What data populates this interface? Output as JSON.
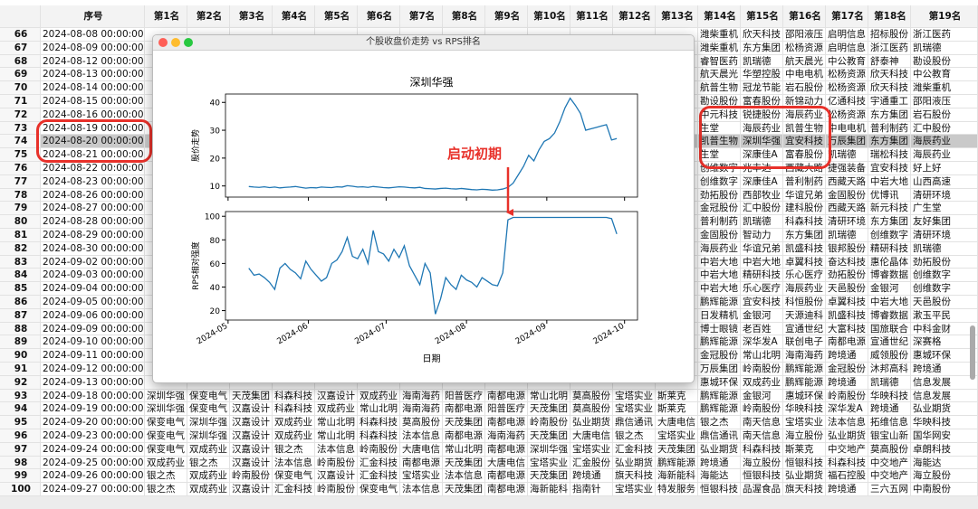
{
  "table": {
    "columns": [
      "序号",
      "第1名",
      "第2名",
      "第3名",
      "第4名",
      "第5名",
      "第6名",
      "第7名",
      "第8名",
      "第9名",
      "第10名",
      "第11名",
      "第12名",
      "第13名",
      "第14名",
      "第15名",
      "第16名",
      "第17名",
      "第18名",
      "第19名"
    ],
    "rows": [
      {
        "index": 66,
        "date": "2024-08-08 00:00:00",
        "cells": [
          null,
          null,
          null,
          null,
          null,
          null,
          null,
          null,
          null,
          null,
          null,
          null,
          null,
          "潍柴重机",
          "欣天科技",
          "邵阳液压",
          "启明信息",
          "招标股份",
          "浙江医药"
        ]
      },
      {
        "index": 67,
        "date": "2024-08-09 00:00:00",
        "cells": [
          null,
          null,
          null,
          null,
          null,
          null,
          null,
          null,
          null,
          null,
          null,
          null,
          null,
          "潍柴重机",
          "东方集团",
          "松杨资源",
          "启明信息",
          "浙江医药",
          "凯瑞德"
        ]
      },
      {
        "index": 68,
        "date": "2024-08-12 00:00:00",
        "cells": [
          null,
          null,
          null,
          null,
          null,
          null,
          null,
          null,
          null,
          null,
          null,
          null,
          null,
          "睿智医药",
          "凯瑞德",
          "航天晨光",
          "中公教育",
          "舒泰神",
          "勘设股份"
        ]
      },
      {
        "index": 69,
        "date": "2024-08-13 00:00:00",
        "cells": [
          null,
          null,
          null,
          null,
          null,
          null,
          null,
          null,
          null,
          null,
          null,
          null,
          null,
          "航天晨光",
          "华塑控股",
          "中电电机",
          "松杨资源",
          "欣天科技",
          "中公教育"
        ]
      },
      {
        "index": 70,
        "date": "2024-08-14 00:00:00",
        "cells": [
          null,
          null,
          null,
          null,
          null,
          null,
          null,
          null,
          null,
          null,
          null,
          null,
          null,
          "航普生物",
          "冠龙节能",
          "岩石股份",
          "松杨资源",
          "欣天科技",
          "潍柴重机"
        ]
      },
      {
        "index": 71,
        "date": "2024-08-15 00:00:00",
        "cells": [
          null,
          null,
          null,
          null,
          null,
          null,
          null,
          null,
          null,
          null,
          null,
          null,
          null,
          "勘设股份",
          "富春股份",
          "新锦动力",
          "亿通科技",
          "宇通重工",
          "邵阳液压"
        ]
      },
      {
        "index": 72,
        "date": "2024-08-16 00:00:00",
        "cells": [
          null,
          null,
          null,
          null,
          null,
          null,
          null,
          null,
          null,
          null,
          null,
          null,
          null,
          "中元科技",
          "锐捷股份",
          "海辰药业",
          "松杨资源",
          "东方集团",
          "岩石股份"
        ]
      },
      {
        "index": 73,
        "date": "2024-08-19 00:00:00",
        "cells": [
          null,
          null,
          null,
          null,
          null,
          null,
          null,
          null,
          null,
          null,
          null,
          null,
          null,
          "生堂",
          "海辰药业",
          "凯普生物",
          "中电电机",
          "普利制药",
          "汇中股份"
        ]
      },
      {
        "index": 74,
        "date": "2024-08-20 00:00:00",
        "cells": [
          null,
          null,
          null,
          null,
          null,
          null,
          null,
          null,
          null,
          null,
          null,
          null,
          null,
          "凯普生物",
          "深圳华强",
          "宜安科技",
          "万辰集团",
          "东方集团",
          "海辰药业"
        ]
      },
      {
        "index": 75,
        "date": "2024-08-21 00:00:00",
        "cells": [
          null,
          null,
          null,
          null,
          null,
          null,
          null,
          null,
          null,
          null,
          null,
          null,
          null,
          "生堂",
          "深康佳A",
          "富春股份",
          "凯瑞德",
          "瑞松科技",
          "海辰药业"
        ]
      },
      {
        "index": 76,
        "date": "2024-08-22 00:00:00",
        "cells": [
          null,
          null,
          null,
          null,
          null,
          null,
          null,
          null,
          null,
          null,
          null,
          null,
          null,
          "创维数字",
          "兆丰达",
          "西藏大路",
          "捷强装备",
          "宜安科技",
          "好上好"
        ]
      },
      {
        "index": 77,
        "date": "2024-08-23 00:00:00",
        "cells": [
          null,
          null,
          null,
          null,
          null,
          null,
          null,
          null,
          null,
          null,
          null,
          null,
          null,
          "创维数字",
          "深康佳A",
          "普利制药",
          "西藏天路",
          "中岩大地",
          "山西高速"
        ]
      },
      {
        "index": 78,
        "date": "2024-08-26 00:00:00",
        "cells": [
          null,
          null,
          null,
          null,
          null,
          null,
          null,
          null,
          null,
          null,
          null,
          null,
          null,
          "劲拓股份",
          "西部牧业",
          "华谊兄弟",
          "金固股份",
          "优博讯",
          "清研环境"
        ]
      },
      {
        "index": 79,
        "date": "2024-08-27 00:00:00",
        "cells": [
          null,
          null,
          null,
          null,
          null,
          null,
          null,
          null,
          null,
          null,
          null,
          null,
          null,
          "金冠股份",
          "汇中股份",
          "建科股份",
          "西藏天路",
          "新元科技",
          "广生堂"
        ]
      },
      {
        "index": 80,
        "date": "2024-08-28 00:00:00",
        "cells": [
          null,
          null,
          null,
          null,
          null,
          null,
          null,
          null,
          null,
          null,
          null,
          null,
          null,
          "普利制药",
          "凯瑞德",
          "科森科技",
          "清研环境",
          "东方集团",
          "友好集团"
        ]
      },
      {
        "index": 81,
        "date": "2024-08-29 00:00:00",
        "cells": [
          null,
          null,
          null,
          null,
          null,
          null,
          null,
          null,
          null,
          null,
          null,
          null,
          null,
          "金固股份",
          "智动力",
          "东方集团",
          "凯瑞德",
          "创维数字",
          "清研环境"
        ]
      },
      {
        "index": 82,
        "date": "2024-08-30 00:00:00",
        "cells": [
          null,
          null,
          null,
          null,
          null,
          null,
          null,
          null,
          null,
          null,
          null,
          null,
          null,
          "海辰药业",
          "华谊兄弟",
          "凯盛科技",
          "银邦股份",
          "精研科技",
          "凯瑞德"
        ]
      },
      {
        "index": 83,
        "date": "2024-09-02 00:00:00",
        "cells": [
          null,
          null,
          null,
          null,
          null,
          null,
          null,
          null,
          null,
          null,
          null,
          null,
          null,
          "中岩大地",
          "中岩大地",
          "卓翼科技",
          "奋达科技",
          "惠伦晶体",
          "劲拓股份"
        ]
      },
      {
        "index": 84,
        "date": "2024-09-03 00:00:00",
        "cells": [
          null,
          null,
          null,
          null,
          null,
          null,
          null,
          null,
          null,
          null,
          null,
          null,
          null,
          "中岩大地",
          "精研科技",
          "乐心医疗",
          "劲拓股份",
          "博睿数据",
          "创维数字"
        ]
      },
      {
        "index": 85,
        "date": "2024-09-04 00:00:00",
        "cells": [
          null,
          null,
          null,
          null,
          null,
          null,
          null,
          null,
          null,
          null,
          null,
          null,
          null,
          "中岩大地",
          "乐心医疗",
          "海辰药业",
          "天邑股份",
          "金银河",
          "创维数字"
        ]
      },
      {
        "index": 86,
        "date": "2024-09-05 00:00:00",
        "cells": [
          null,
          null,
          null,
          null,
          null,
          null,
          null,
          null,
          null,
          null,
          null,
          null,
          null,
          "鹏辉能源",
          "宜安科技",
          "科恒股份",
          "卓翼科技",
          "中岩大地",
          "天邑股份"
        ]
      },
      {
        "index": 87,
        "date": "2024-09-06 00:00:00",
        "cells": [
          null,
          null,
          null,
          null,
          null,
          null,
          null,
          null,
          null,
          null,
          null,
          null,
          null,
          "日发精机",
          "金银河",
          "天源迪科",
          "凯盛科技",
          "博睿数据",
          "漱玉平民"
        ]
      },
      {
        "index": 88,
        "date": "2024-09-09 00:00:00",
        "cells": [
          null,
          null,
          null,
          null,
          null,
          null,
          null,
          null,
          null,
          null,
          null,
          null,
          null,
          "博士眼镜",
          "老百姓",
          "宣通世纪",
          "大富科技",
          "国旅联合",
          "中科金财"
        ]
      },
      {
        "index": 89,
        "date": "2024-09-10 00:00:00",
        "cells": [
          null,
          null,
          null,
          null,
          null,
          null,
          null,
          null,
          null,
          null,
          null,
          null,
          null,
          "鹏辉能源",
          "深华发A",
          "联创电子",
          "南都电源",
          "宣通世纪",
          "深赛格"
        ]
      },
      {
        "index": 90,
        "date": "2024-09-11 00:00:00",
        "cells": [
          null,
          null,
          null,
          null,
          null,
          null,
          null,
          null,
          null,
          null,
          null,
          null,
          null,
          "金冠股份",
          "常山北明",
          "海南海药",
          "跨境通",
          "威领股份",
          "惠城环保"
        ]
      },
      {
        "index": 91,
        "date": "2024-09-12 00:00:00",
        "cells": [
          null,
          null,
          null,
          null,
          null,
          null,
          null,
          null,
          null,
          null,
          null,
          null,
          null,
          "万辰集团",
          "岭南股份",
          "鹏辉能源",
          "金冠股份",
          "沐邦高科",
          "跨境通"
        ]
      },
      {
        "index": 92,
        "date": "2024-09-13 00:00:00",
        "cells": [
          null,
          null,
          null,
          null,
          null,
          null,
          null,
          null,
          null,
          null,
          null,
          null,
          null,
          "惠城环保",
          "双成药业",
          "鹏辉能源",
          "跨境通",
          "凯瑞德",
          "信息发展"
        ]
      },
      {
        "index": 93,
        "date": "2024-09-18 00:00:00",
        "cells": [
          "深圳华强",
          "保变电气",
          "天茂集团",
          "科森科技",
          "汉嘉设计",
          "双成药业",
          "海南海药",
          "阳普医疗",
          "南都电源",
          "常山北明",
          "莫高股份",
          "宝塔实业",
          "斯莱克",
          "鹏辉能源",
          "金银河",
          "惠城环保",
          "岭南股份",
          "华映科技",
          "信息发展"
        ]
      },
      {
        "index": 94,
        "date": "2024-09-19 00:00:00",
        "cells": [
          "深圳华强",
          "保变电气",
          "汉嘉设计",
          "科森科技",
          "双成药业",
          "常山北明",
          "海南海药",
          "南都电源",
          "阳普医疗",
          "天茂集团",
          "莫高股份",
          "宝塔实业",
          "斯莱克",
          "鹏辉能源",
          "岭南股份",
          "华映科技",
          "深华发A",
          "跨境通",
          "弘业期货"
        ]
      },
      {
        "index": 95,
        "date": "2024-09-20 00:00:00",
        "cells": [
          "保变电气",
          "深圳华强",
          "汉嘉设计",
          "双成药业",
          "常山北明",
          "科森科技",
          "莫高股份",
          "天茂集团",
          "南都电源",
          "岭南股份",
          "弘业期货",
          "鼎信通讯",
          "大唐电信",
          "银之杰",
          "南天信息",
          "宝塔实业",
          "法本信息",
          "拓维信息",
          "华映科技"
        ]
      },
      {
        "index": 96,
        "date": "2024-09-23 00:00:00",
        "cells": [
          "保变电气",
          "深圳华强",
          "汉嘉设计",
          "双成药业",
          "常山北明",
          "科森科技",
          "法本信息",
          "南都电源",
          "海南海药",
          "天茂集团",
          "大唐电信",
          "银之杰",
          "宝塔实业",
          "鼎信通讯",
          "南天信息",
          "海立股份",
          "弘业期货",
          "银宝山新",
          "国华网安"
        ]
      },
      {
        "index": 97,
        "date": "2024-09-24 00:00:00",
        "cells": [
          "保变电气",
          "双成药业",
          "汉嘉设计",
          "银之杰",
          "法本信息",
          "岭南股份",
          "大唐电信",
          "常山北明",
          "南都电源",
          "深圳华强",
          "宝塔实业",
          "汇金科技",
          "天茂集团",
          "弘业期货",
          "科森科技",
          "斯莱克",
          "中交地产",
          "莫高股份",
          "卓朗科技"
        ]
      },
      {
        "index": 98,
        "date": "2024-09-25 00:00:00",
        "cells": [
          "双成药业",
          "银之杰",
          "汉嘉设计",
          "法本信息",
          "岭南股份",
          "汇金科技",
          "南都电源",
          "天茂集团",
          "大唐电信",
          "宝塔实业",
          "汇金股份",
          "弘业期货",
          "鹏辉能源",
          "跨境通",
          "海立股份",
          "恒银科技",
          "科森科技",
          "中交地产",
          "海能达"
        ]
      },
      {
        "index": 99,
        "date": "2024-09-26 00:00:00",
        "cells": [
          "银之杰",
          "双成药业",
          "岭南股份",
          "保变电气",
          "汉嘉设计",
          "汇金科技",
          "宝塔实业",
          "法本信息",
          "南都电源",
          "天茂集团",
          "跨境通",
          "旗天科技",
          "海新能科",
          "海能达",
          "恒银科技",
          "弘业期货",
          "福石控股",
          "中交地产",
          "海立股份"
        ]
      },
      {
        "index": 100,
        "date": "2024-09-27 00:00:00",
        "cells": [
          "银之杰",
          "双成药业",
          "汉嘉设计",
          "汇金科技",
          "岭南股份",
          "保变电气",
          "法本信息",
          "天茂集团",
          "南都电源",
          "海新能科",
          "指南针",
          "宝塔实业",
          "特发服务",
          "恒银科技",
          "品渥食品",
          "旗天科技",
          "跨境通",
          "三六五网",
          "中南股份"
        ]
      }
    ]
  },
  "window": {
    "title": "个股收盘价走势 vs RPS排名"
  },
  "chart_data": {
    "type": "line",
    "title": "深圳华强",
    "xlabel": "日期",
    "color": "#1f77b4",
    "xlim": [
      -4.5,
      75
    ],
    "xticks": [
      {
        "value": -4,
        "label": "2024-05"
      },
      {
        "value": 11.5,
        "label": "2024-06"
      },
      {
        "value": 26.5,
        "label": "2024-07"
      },
      {
        "value": 42,
        "label": "2024-08"
      },
      {
        "value": 57.5,
        "label": "2024-09"
      },
      {
        "value": 72.5,
        "label": "2024-10"
      }
    ],
    "annotation": "启动初期",
    "panels": [
      {
        "ylabel": "股价走势",
        "ylim": [
          6,
          43
        ],
        "yticks": [
          10,
          20,
          30,
          40
        ],
        "values": [
          9.8,
          9.6,
          9.5,
          9.7,
          9.4,
          9.6,
          9.3,
          9.5,
          9.6,
          9.8,
          9.5,
          9.2,
          9.4,
          9.3,
          9.6,
          9.5,
          9.4,
          9.7,
          9.6,
          10.1,
          9.9,
          9.6,
          9.7,
          9.5,
          9.8,
          9.6,
          9.4,
          9.3,
          9.5,
          9.7,
          9.6,
          9.4,
          9.3,
          9.5,
          9.1,
          9.0,
          8.9,
          9.1,
          9.2,
          9.0,
          8.9,
          9.1,
          8.9,
          8.7,
          8.6,
          8.8,
          8.7,
          8.5,
          8.6,
          8.9,
          9.5,
          11,
          14,
          17,
          21,
          19,
          23,
          26,
          27,
          29,
          33,
          38,
          41.5,
          39,
          36,
          30,
          30.5,
          31,
          31.5,
          32,
          26.5,
          27
        ]
      },
      {
        "ylabel": "RPS相对强度",
        "ylim": [
          12,
          104
        ],
        "yticks": [
          20,
          40,
          60,
          80,
          100
        ],
        "values": [
          56,
          50,
          51,
          48,
          44,
          38,
          56,
          60,
          55,
          52,
          47,
          62,
          55,
          50,
          45,
          48,
          60,
          63,
          70,
          82,
          66,
          64,
          72,
          60,
          88,
          70,
          68,
          62,
          72,
          65,
          75,
          58,
          50,
          42,
          60,
          52,
          17,
          30,
          48,
          42,
          38,
          50,
          46,
          44,
          40,
          48,
          45,
          42,
          41,
          52,
          97,
          99,
          99,
          99,
          99,
          99,
          99,
          99,
          99,
          99,
          99,
          99,
          99,
          99,
          99,
          99,
          99,
          99,
          99,
          99,
          98,
          85
        ]
      }
    ]
  }
}
